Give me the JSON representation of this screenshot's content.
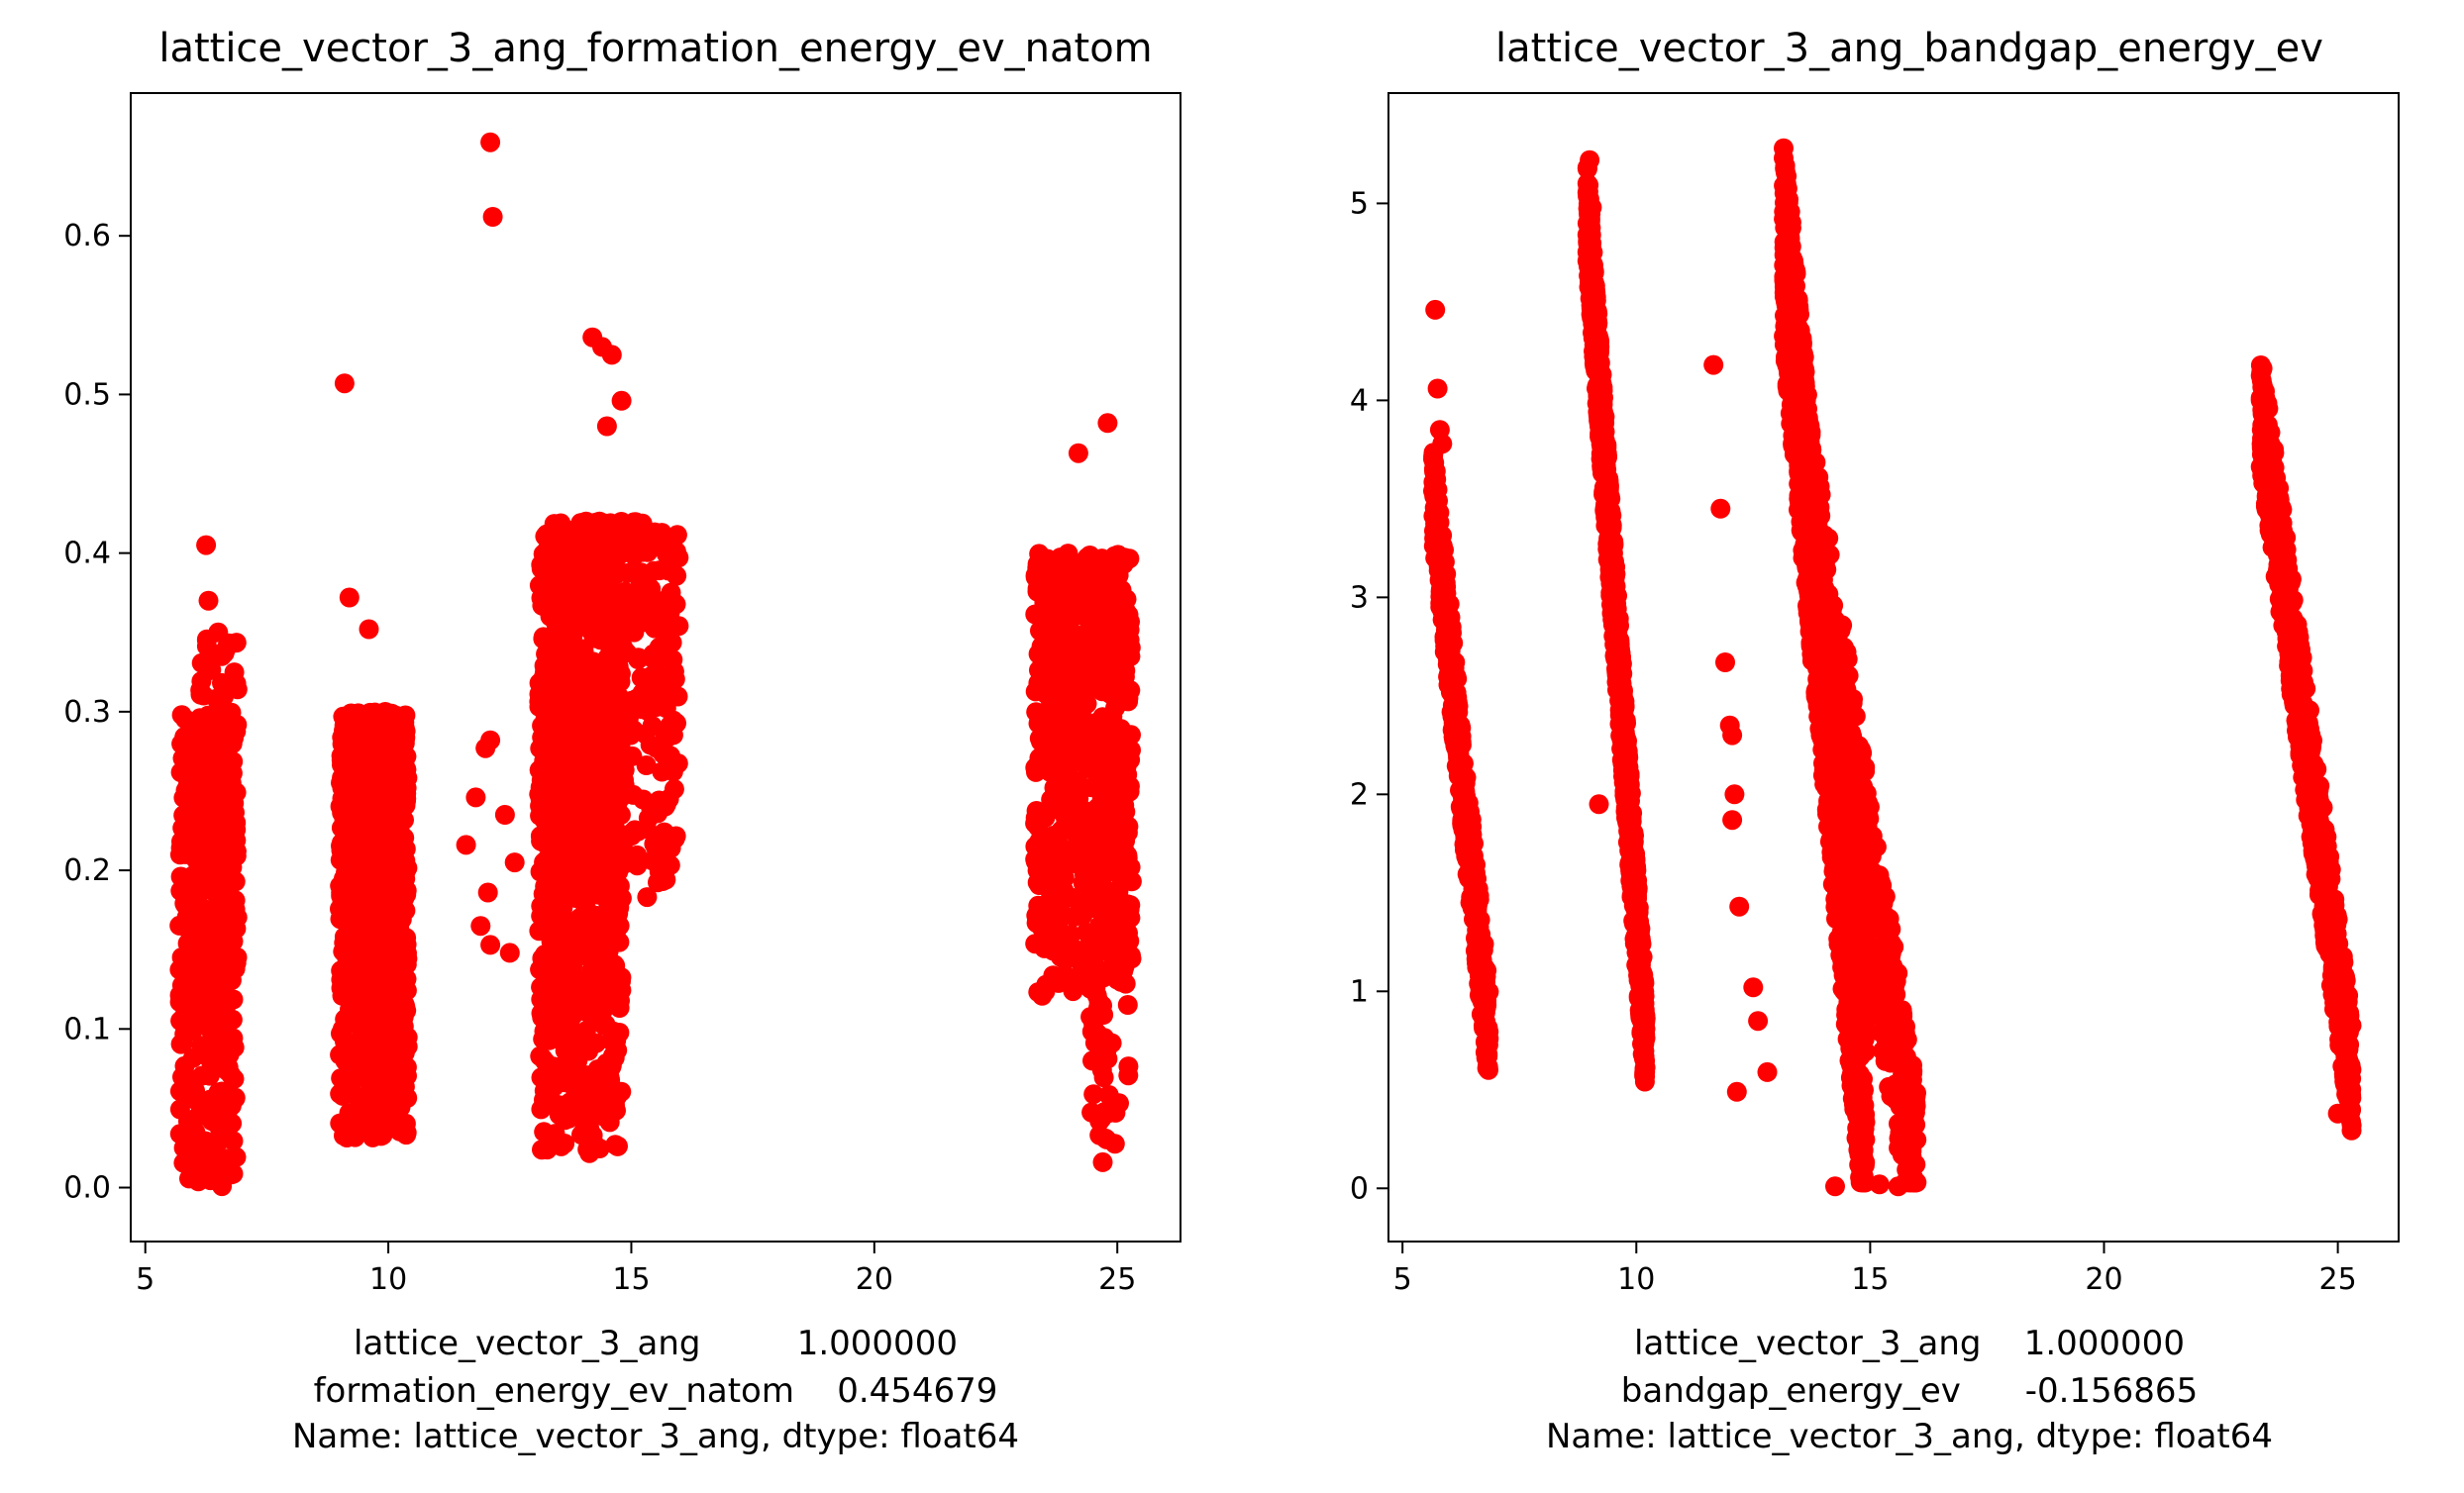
{
  "colors": {
    "marker": "#ff0000",
    "axes": "#000000",
    "background": "#ffffff"
  },
  "chart_data": [
    {
      "type": "scatter",
      "title": "lattice_vector_3_ang_formation_energy_ev_natom",
      "xlabel_lines": [
        "lattice_vector_3_ang         1.000000",
        "formation_energy_ev_natom    0.454679",
        "Name: lattice_vector_3_ang, dtype: float64"
      ],
      "xlim": [
        4.7,
        26.3
      ],
      "ylim": [
        -0.034,
        0.69
      ],
      "xticks": [
        5,
        10,
        15,
        20,
        25
      ],
      "yticks": [
        0.0,
        0.1,
        0.2,
        0.3,
        0.4,
        0.5,
        0.6
      ],
      "ytick_labels": [
        "0.0",
        "0.1",
        "0.2",
        "0.3",
        "0.4",
        "0.5",
        "0.6"
      ],
      "grid": false,
      "clusters": [
        {
          "x": [
            5.7,
            6.9
          ],
          "y": [
            0.0,
            0.3
          ],
          "n": 420
        },
        {
          "x": [
            6.1,
            6.9
          ],
          "y": [
            0.15,
            0.35
          ],
          "n": 80
        },
        {
          "x": [
            9.0,
            10.4
          ],
          "y": [
            0.03,
            0.3
          ],
          "n": 900
        },
        {
          "x": [
            13.1,
            14.8
          ],
          "y": [
            0.02,
            0.42
          ],
          "n": 900
        },
        {
          "x": [
            14.0,
            16.0
          ],
          "y": [
            0.18,
            0.42
          ],
          "n": 300
        },
        {
          "x": [
            23.3,
            25.3
          ],
          "y": [
            0.12,
            0.4
          ],
          "n": 650
        },
        {
          "x": [
            24.4,
            25.3
          ],
          "y": [
            0.02,
            0.2
          ],
          "n": 60
        }
      ],
      "points": [
        [
          6.25,
          0.405
        ],
        [
          6.3,
          0.37
        ],
        [
          6.5,
          0.35
        ],
        [
          9.1,
          0.507
        ],
        [
          9.2,
          0.372
        ],
        [
          9.6,
          0.352
        ],
        [
          11.6,
          0.216
        ],
        [
          11.8,
          0.246
        ],
        [
          11.9,
          0.165
        ],
        [
          12.0,
          0.277
        ],
        [
          12.05,
          0.186
        ],
        [
          12.1,
          0.282
        ],
        [
          12.1,
          0.153
        ],
        [
          12.4,
          0.235
        ],
        [
          12.5,
          0.148
        ],
        [
          12.6,
          0.205
        ],
        [
          12.1,
          0.659
        ],
        [
          12.15,
          0.612
        ],
        [
          14.2,
          0.536
        ],
        [
          14.4,
          0.53
        ],
        [
          14.6,
          0.525
        ],
        [
          14.8,
          0.496
        ],
        [
          14.5,
          0.48
        ],
        [
          14.1,
          0.045
        ],
        [
          14.6,
          0.077
        ],
        [
          15.8,
          0.405
        ],
        [
          15.9,
          0.22
        ],
        [
          24.8,
          0.482
        ],
        [
          24.2,
          0.463
        ],
        [
          25.3,
          0.193
        ],
        [
          24.7,
          0.016
        ],
        [
          25.1,
          0.172
        ]
      ]
    },
    {
      "type": "scatter",
      "title": "lattice_vector_3_ang_bandgap_energy_ev",
      "xlabel_lines": [
        "lattice_vector_3_ang    1.000000",
        "bandgap_energy_ev      -0.156865",
        "Name: lattice_vector_3_ang, dtype: float64"
      ],
      "xlim": [
        4.7,
        26.3
      ],
      "ylim": [
        -0.27,
        5.56
      ],
      "xticks": [
        5,
        10,
        15,
        20,
        25
      ],
      "yticks": [
        0,
        1,
        2,
        3,
        4,
        5
      ],
      "ytick_labels": [
        "0",
        "1",
        "2",
        "3",
        "4",
        "5"
      ],
      "grid": false,
      "streaks": [
        {
          "x0": 5.65,
          "x1": 6.85,
          "ytop": 3.55,
          "ybot": 0.75,
          "spread": 0.25,
          "n": 450
        },
        {
          "x0": 8.95,
          "x1": 10.2,
          "ytop": 4.95,
          "ybot": 0.7,
          "spread": 0.25,
          "n": 900
        },
        {
          "x0": 13.15,
          "x1": 14.9,
          "ytop": 4.8,
          "ybot": 0.3,
          "spread": 0.55,
          "n": 1100
        },
        {
          "x0": 13.6,
          "x1": 16.0,
          "ytop": 3.6,
          "ybot": 0.05,
          "spread": 0.45,
          "n": 500
        },
        {
          "x0": 23.35,
          "x1": 25.3,
          "ytop": 3.95,
          "ybot": 0.55,
          "spread": 0.3,
          "n": 650
        }
      ],
      "points": [
        [
          5.7,
          4.46
        ],
        [
          5.75,
          4.06
        ],
        [
          5.8,
          3.85
        ],
        [
          5.85,
          3.78
        ],
        [
          9.0,
          5.22
        ],
        [
          9.05,
          4.98
        ],
        [
          9.2,
          1.95
        ],
        [
          11.65,
          4.18
        ],
        [
          11.8,
          3.45
        ],
        [
          11.9,
          2.67
        ],
        [
          12.0,
          2.35
        ],
        [
          12.05,
          2.3
        ],
        [
          12.1,
          2.0
        ],
        [
          12.05,
          1.87
        ],
        [
          12.2,
          1.43
        ],
        [
          12.5,
          1.02
        ],
        [
          12.6,
          0.85
        ],
        [
          12.8,
          0.59
        ],
        [
          12.15,
          0.49
        ],
        [
          13.15,
          5.28
        ],
        [
          13.15,
          5.23
        ],
        [
          13.2,
          4.9
        ],
        [
          14.25,
          0.01
        ],
        [
          15.1,
          1.0
        ],
        [
          15.3,
          1.0
        ],
        [
          15.5,
          0.68
        ],
        [
          15.7,
          0.25
        ],
        [
          15.9,
          0.55
        ],
        [
          15.6,
          0.01
        ],
        [
          15.2,
          0.02
        ],
        [
          23.35,
          4.0
        ],
        [
          25.2,
          0.65
        ],
        [
          25.0,
          0.38
        ]
      ]
    }
  ]
}
